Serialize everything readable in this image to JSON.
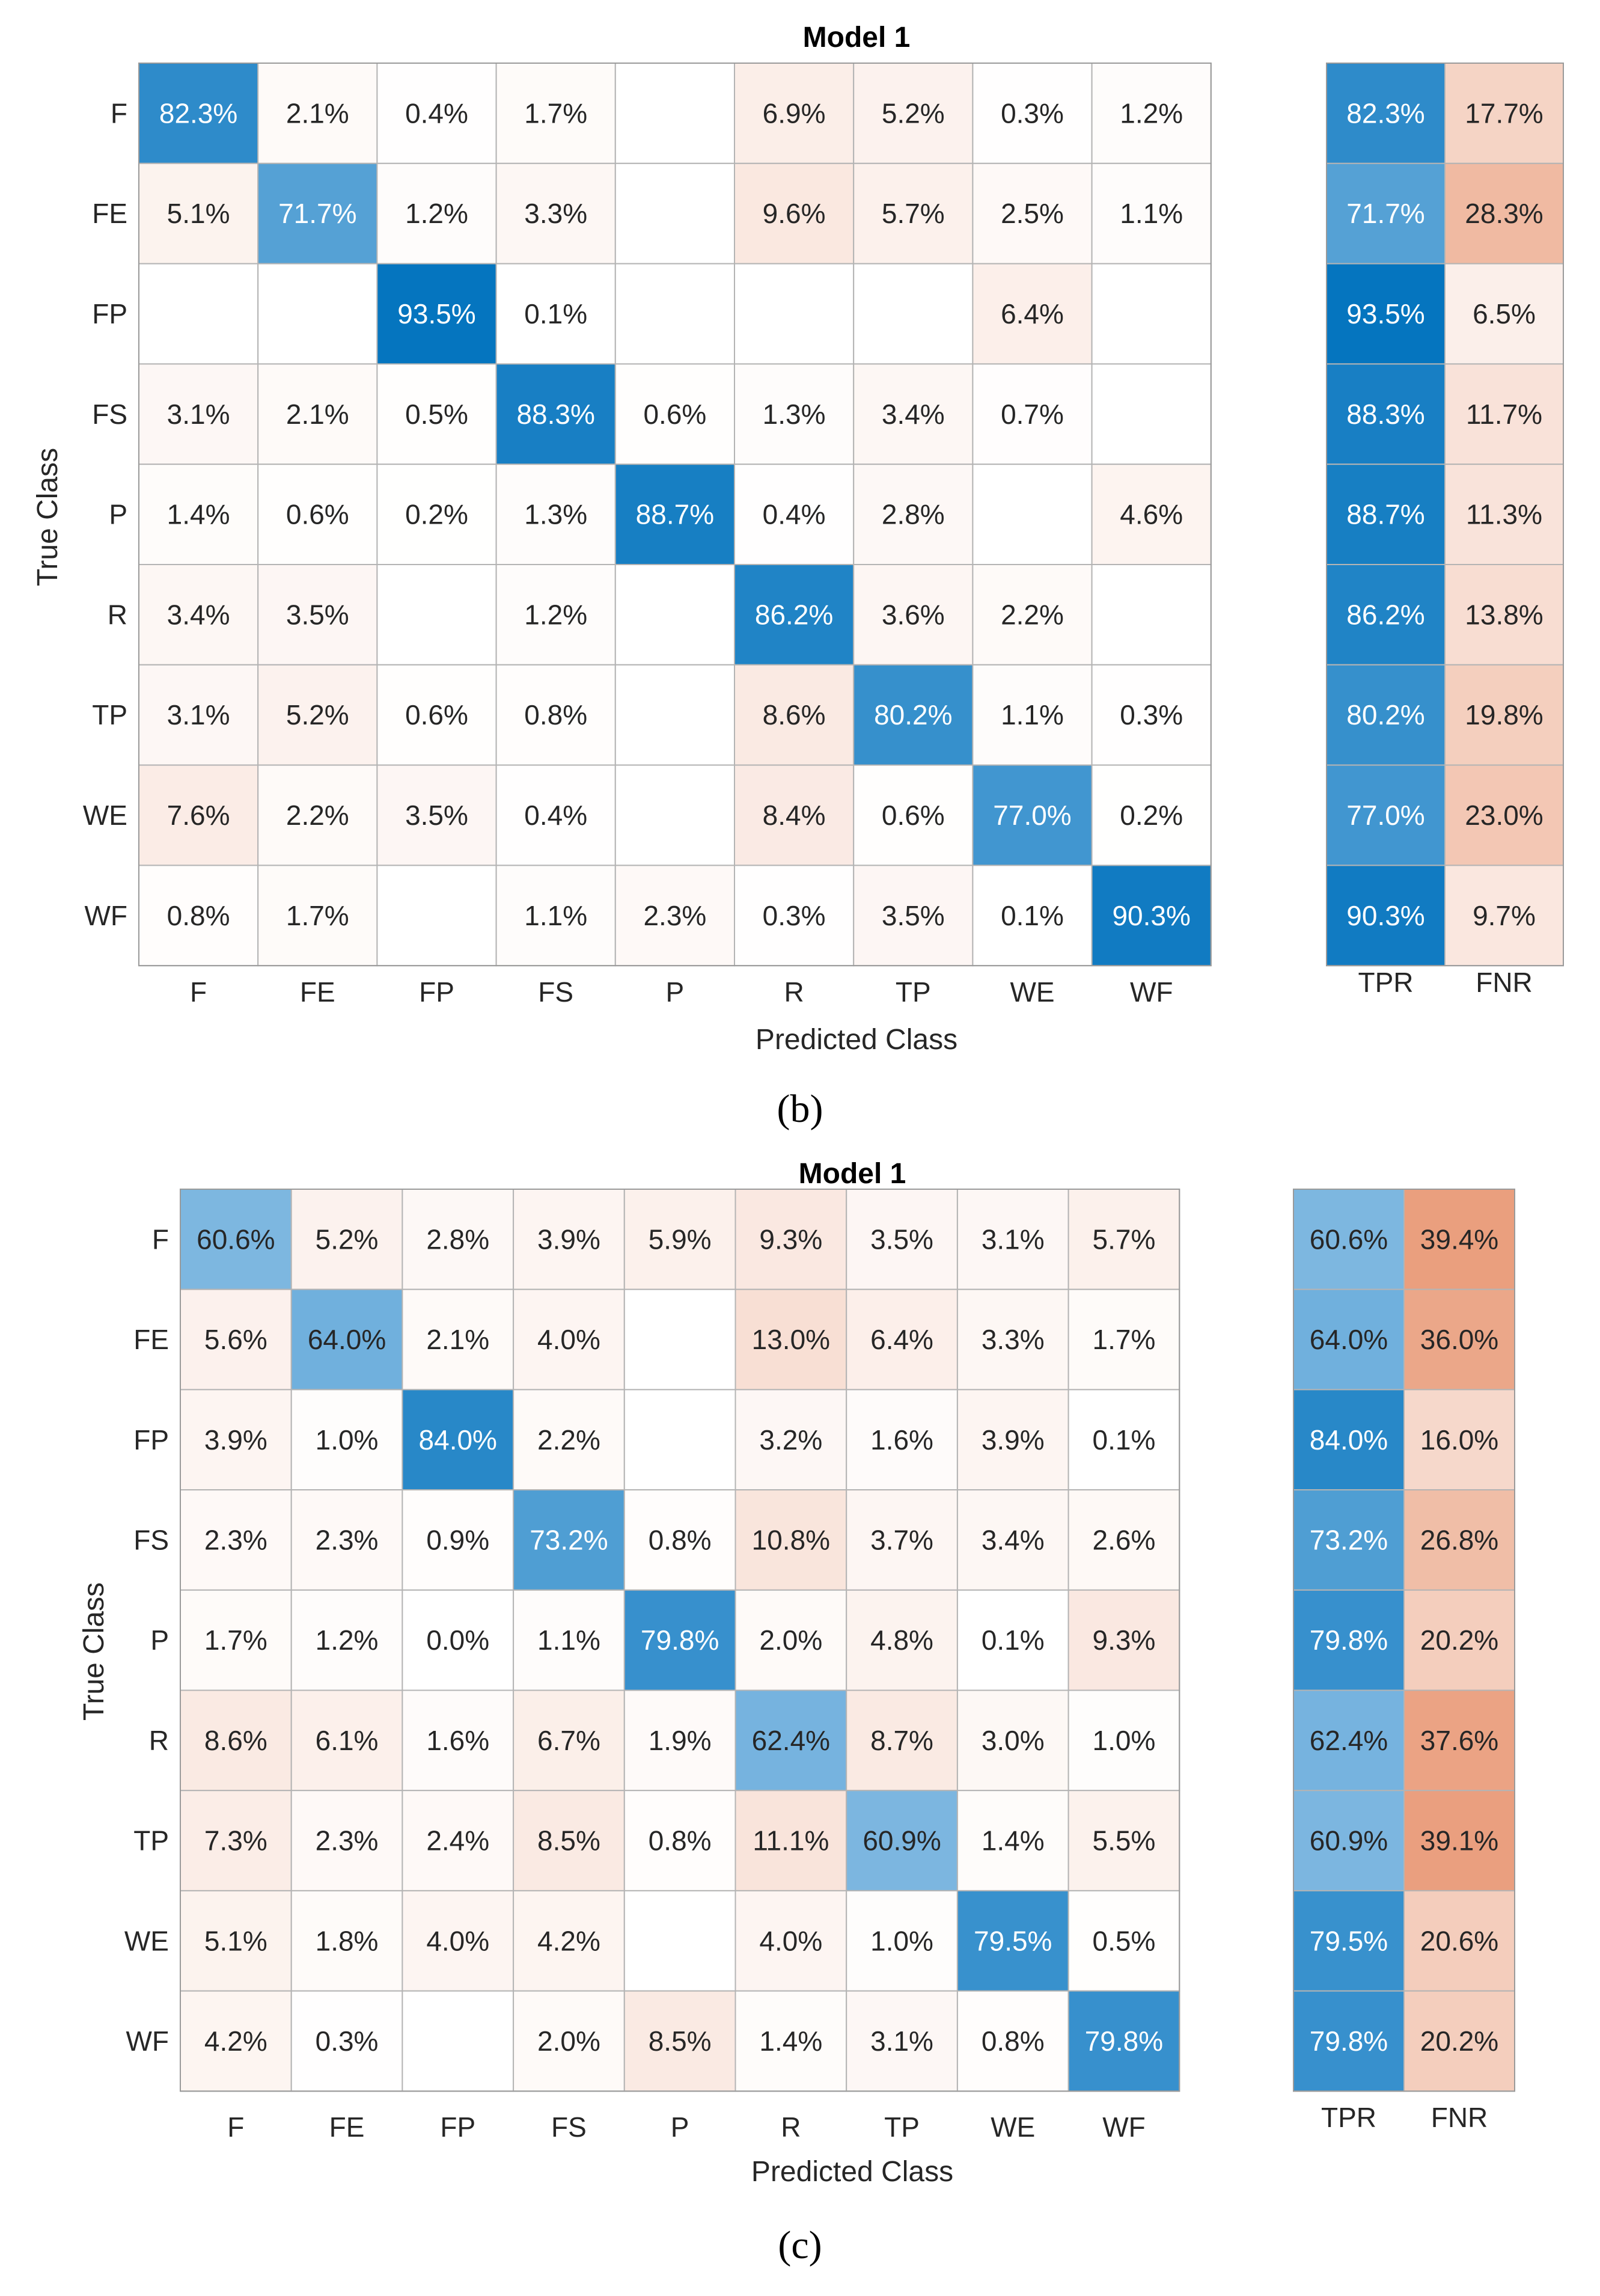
{
  "chart_data": [
    {
      "type": "heatmap",
      "panel_label": "(b)",
      "title": "Model 1",
      "xlabel": "Predicted Class",
      "ylabel": "True Class",
      "categories": [
        "F",
        "FE",
        "FP",
        "FS",
        "P",
        "R",
        "TP",
        "WE",
        "WF"
      ],
      "matrix": [
        [
          82.3,
          2.1,
          0.4,
          1.7,
          null,
          6.9,
          5.2,
          0.3,
          1.2
        ],
        [
          5.1,
          71.7,
          1.2,
          3.3,
          null,
          9.6,
          5.7,
          2.5,
          1.1
        ],
        [
          null,
          null,
          93.5,
          0.1,
          null,
          null,
          null,
          6.4,
          null
        ],
        [
          3.1,
          2.1,
          0.5,
          88.3,
          0.6,
          1.3,
          3.4,
          0.7,
          null
        ],
        [
          1.4,
          0.6,
          0.2,
          1.3,
          88.7,
          0.4,
          2.8,
          null,
          4.6
        ],
        [
          3.4,
          3.5,
          null,
          1.2,
          null,
          86.2,
          3.6,
          2.2,
          null
        ],
        [
          3.1,
          5.2,
          0.6,
          0.8,
          null,
          8.6,
          80.2,
          1.1,
          0.3
        ],
        [
          7.6,
          2.2,
          3.5,
          0.4,
          null,
          8.4,
          0.6,
          77.0,
          0.2
        ],
        [
          0.8,
          1.7,
          null,
          1.1,
          2.3,
          0.3,
          3.5,
          0.1,
          90.3
        ]
      ],
      "summary_labels": [
        "TPR",
        "FNR"
      ],
      "tpr": [
        82.3,
        71.7,
        93.5,
        88.3,
        88.7,
        86.2,
        80.2,
        77.0,
        90.3
      ],
      "fnr": [
        17.7,
        28.3,
        6.5,
        11.7,
        11.3,
        13.8,
        19.8,
        23.0,
        9.7
      ],
      "value_suffix": "%"
    },
    {
      "type": "heatmap",
      "panel_label": "(c)",
      "title": "Model 1",
      "xlabel": "Predicted Class",
      "ylabel": "True Class",
      "categories": [
        "F",
        "FE",
        "FP",
        "FS",
        "P",
        "R",
        "TP",
        "WE",
        "WF"
      ],
      "matrix": [
        [
          60.6,
          5.2,
          2.8,
          3.9,
          5.9,
          9.3,
          3.5,
          3.1,
          5.7
        ],
        [
          5.6,
          64.0,
          2.1,
          4.0,
          null,
          13.0,
          6.4,
          3.3,
          1.7
        ],
        [
          3.9,
          1.0,
          84.0,
          2.2,
          null,
          3.2,
          1.6,
          3.9,
          0.1
        ],
        [
          2.3,
          2.3,
          0.9,
          73.2,
          0.8,
          10.8,
          3.7,
          3.4,
          2.6
        ],
        [
          1.7,
          1.2,
          0.0,
          1.1,
          79.8,
          2.0,
          4.8,
          0.1,
          9.3
        ],
        [
          8.6,
          6.1,
          1.6,
          6.7,
          1.9,
          62.4,
          8.7,
          3.0,
          1.0
        ],
        [
          7.3,
          2.3,
          2.4,
          8.5,
          0.8,
          11.1,
          60.9,
          1.4,
          5.5
        ],
        [
          5.1,
          1.8,
          4.0,
          4.2,
          null,
          4.0,
          1.0,
          79.5,
          0.5
        ],
        [
          4.2,
          0.3,
          null,
          2.0,
          8.5,
          1.4,
          3.1,
          0.8,
          79.8
        ]
      ],
      "summary_labels": [
        "TPR",
        "FNR"
      ],
      "tpr": [
        60.6,
        64.0,
        84.0,
        73.2,
        79.8,
        62.4,
        60.9,
        79.5,
        79.8
      ],
      "fnr": [
        39.4,
        36.0,
        16.0,
        26.8,
        20.2,
        37.6,
        39.1,
        20.6,
        20.2
      ],
      "value_suffix": "%"
    }
  ],
  "colors": {
    "blue_dark": "#0072bd",
    "blue_light": "#7fb8e1",
    "red_max": "#d9541a",
    "grid": "#b4b4b4",
    "text": "#262626"
  }
}
